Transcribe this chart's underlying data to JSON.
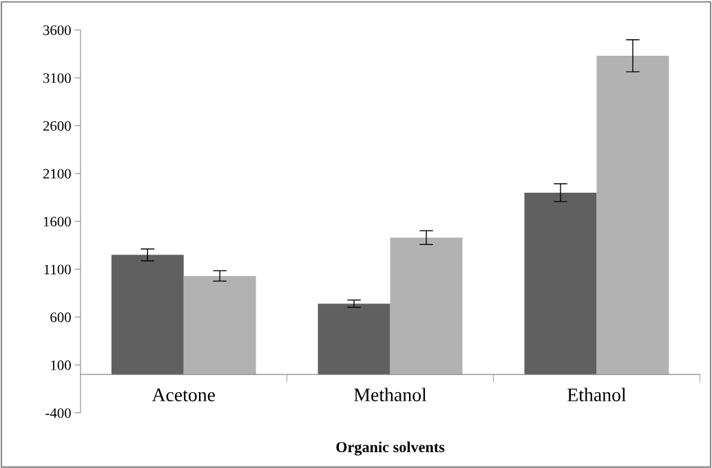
{
  "chart_data": {
    "type": "bar",
    "xlabel": "Organic solvents",
    "categories": [
      "Acetone",
      "Methanol",
      "Ethanol"
    ],
    "series": [
      {
        "color": "#606060",
        "values": [
          1250,
          740,
          1900
        ],
        "errors": [
          62,
          38,
          93
        ]
      },
      {
        "color": "#b2b2b2",
        "values": [
          1030,
          1430,
          3330
        ],
        "errors": [
          54,
          72,
          168
        ]
      }
    ],
    "ylim": [
      -400,
      3600
    ],
    "yticks": [
      -400,
      100,
      600,
      1100,
      1600,
      2100,
      2600,
      3100,
      3600
    ],
    "grid": false
  }
}
